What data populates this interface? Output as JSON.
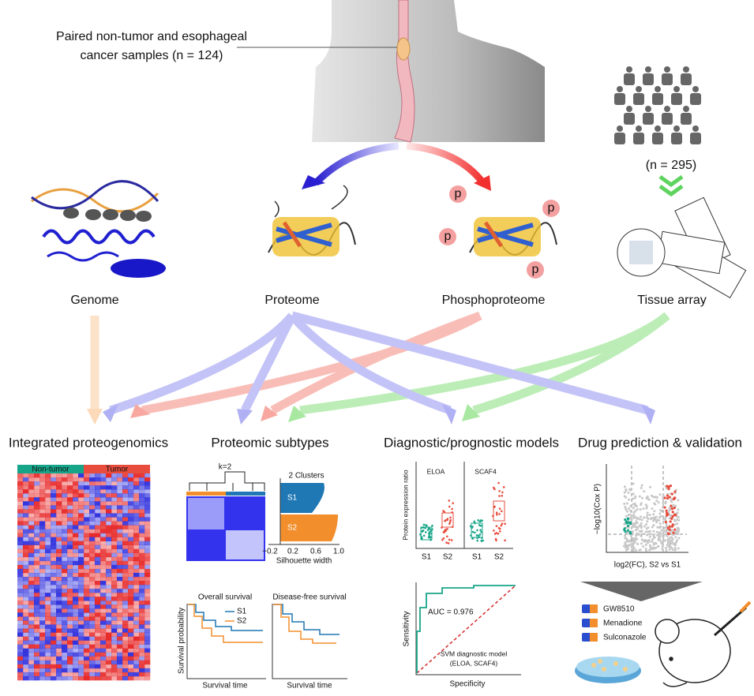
{
  "header": {
    "sample_label": [
      "Paired non-tumor and esophageal",
      "cancer samples (n = 124)"
    ],
    "cohort_label": "(n = 295)"
  },
  "sources": [
    "Genome",
    "Proteome",
    "Phosphoproteome",
    "Tissue array"
  ],
  "phospho_mark": "p",
  "sections": [
    "Integrated proteogenomics",
    "Proteomic subtypes",
    "Diagnostic/prognostic models",
    "Drug prediction & validation"
  ],
  "heatmap": {
    "groups": [
      "Non-tumor",
      "Tumor"
    ]
  },
  "subtypes": {
    "k_label": "k=2",
    "clusters_title": "2 Clusters",
    "clusters": [
      "S1",
      "S2"
    ],
    "silhouette_ticks": [
      "−0.2",
      "0.2",
      "0.6",
      "1.0"
    ],
    "silhouette_label": "Silhouette width"
  },
  "survival": {
    "panels": [
      "Overall survival",
      "Disease-free survival"
    ],
    "legend": [
      "S1",
      "S2"
    ],
    "y_label": "Survival probability",
    "x_label": "Survival time"
  },
  "markers": {
    "panels": [
      "ELOA",
      "SCAF4"
    ],
    "y_label": "Protein expression ratio",
    "groups": [
      "S1",
      "S2"
    ]
  },
  "roc": {
    "auc": "AUC = 0.976",
    "model": [
      "SVM diagnostic model",
      "(ELOA, SCAF4)"
    ],
    "y_label": "Sensitivity",
    "x_label": "Specificity"
  },
  "volcano": {
    "y_label": "−log10(Cox P)",
    "x_label": "log2(FC), S2 vs S1"
  },
  "drugs": [
    "GW8510",
    "Menadione",
    "Sulconazole"
  ]
}
